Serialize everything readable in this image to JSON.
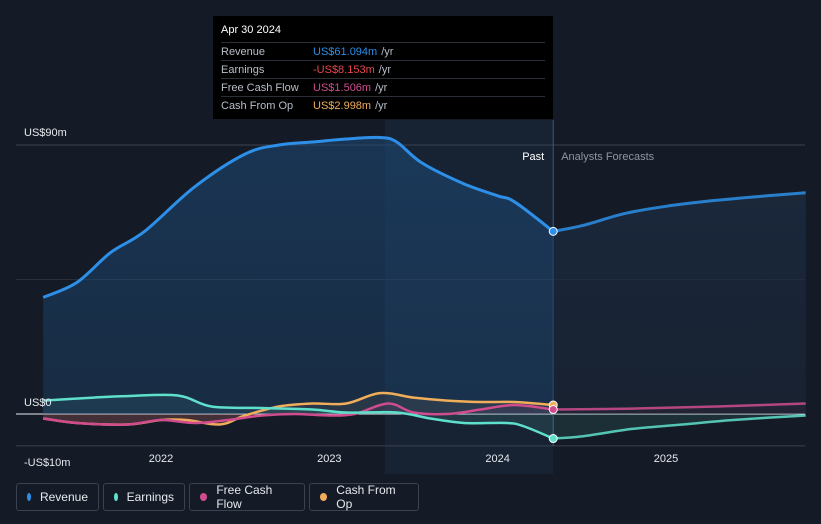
{
  "chart_data": {
    "type": "line",
    "y_labels": [
      "US$90m",
      "US$0",
      "-US$10m"
    ],
    "ylim": [
      -10,
      90
    ],
    "x_ticks": [
      "2022",
      "2023",
      "2024",
      "2025"
    ],
    "past_label": "Past",
    "forecast_label": "Analysts Forecasts",
    "past_end": 2024.33,
    "series": [
      {
        "name": "Revenue",
        "color": "#2d8fe8",
        "points": [
          [
            2021.3,
            39
          ],
          [
            2021.5,
            44
          ],
          [
            2021.7,
            54
          ],
          [
            2021.9,
            61
          ],
          [
            2022.2,
            76
          ],
          [
            2022.5,
            87
          ],
          [
            2022.7,
            90
          ],
          [
            2022.9,
            91
          ],
          [
            2023.1,
            92
          ],
          [
            2023.3,
            92.5
          ],
          [
            2023.4,
            91
          ],
          [
            2023.55,
            84
          ],
          [
            2023.8,
            77
          ],
          [
            2024.0,
            73
          ],
          [
            2024.1,
            71
          ],
          [
            2024.33,
            61.1
          ]
        ],
        "forecast": [
          [
            2024.33,
            61.1
          ],
          [
            2024.5,
            63
          ],
          [
            2024.75,
            67
          ],
          [
            2025.0,
            69.5
          ],
          [
            2025.3,
            71.5
          ],
          [
            2025.6,
            73
          ],
          [
            2025.83,
            74
          ]
        ],
        "fill": true
      },
      {
        "name": "Earnings",
        "color": "#5fe0cd",
        "points": [
          [
            2021.3,
            4.5
          ],
          [
            2021.6,
            5.5
          ],
          [
            2021.8,
            6
          ],
          [
            2022.1,
            6.2
          ],
          [
            2022.3,
            2.5
          ],
          [
            2022.6,
            2
          ],
          [
            2022.9,
            1.5
          ],
          [
            2023.1,
            0.5
          ],
          [
            2023.4,
            0.5
          ],
          [
            2023.6,
            -1.5
          ],
          [
            2023.8,
            -3
          ],
          [
            2024.05,
            -3
          ],
          [
            2024.15,
            -4
          ],
          [
            2024.33,
            -8.2
          ]
        ],
        "forecast": [
          [
            2024.33,
            -8.2
          ],
          [
            2024.5,
            -7.5
          ],
          [
            2024.8,
            -5
          ],
          [
            2025.1,
            -3.5
          ],
          [
            2025.4,
            -2
          ],
          [
            2025.83,
            -0.5
          ]
        ]
      },
      {
        "name": "Free Cash Flow",
        "color": "#d04c8e",
        "points": [
          [
            2021.3,
            -1.5
          ],
          [
            2021.5,
            -3
          ],
          [
            2021.8,
            -3.5
          ],
          [
            2022.0,
            -2
          ],
          [
            2022.2,
            -3
          ],
          [
            2022.4,
            -2
          ],
          [
            2022.6,
            -0.5
          ],
          [
            2022.8,
            0
          ],
          [
            2023.0,
            -0.5
          ],
          [
            2023.15,
            0
          ],
          [
            2023.35,
            3.5
          ],
          [
            2023.5,
            0.5
          ],
          [
            2023.7,
            0
          ],
          [
            2023.9,
            1.5
          ],
          [
            2024.1,
            3
          ],
          [
            2024.33,
            1.5
          ]
        ],
        "forecast": [
          [
            2024.33,
            1.5
          ],
          [
            2024.8,
            1.8
          ],
          [
            2025.3,
            2.5
          ],
          [
            2025.83,
            3.5
          ]
        ]
      },
      {
        "name": "Cash From Op",
        "color": "#f0ad5a",
        "points": [
          [
            2021.3,
            -1.5
          ],
          [
            2021.5,
            -3
          ],
          [
            2021.8,
            -3.5
          ],
          [
            2022.0,
            -2
          ],
          [
            2022.15,
            -2
          ],
          [
            2022.35,
            -3.5
          ],
          [
            2022.5,
            -0.5
          ],
          [
            2022.7,
            2.5
          ],
          [
            2022.9,
            3.5
          ],
          [
            2023.1,
            3.5
          ],
          [
            2023.3,
            7
          ],
          [
            2023.5,
            5.5
          ],
          [
            2023.7,
            4.5
          ],
          [
            2023.9,
            4
          ],
          [
            2024.1,
            4
          ],
          [
            2024.33,
            3.0
          ]
        ],
        "forecast": []
      }
    ]
  },
  "tooltip": {
    "date": "Apr 30 2024",
    "rows": [
      {
        "name": "Revenue",
        "value": "US$61.094m",
        "unit": "/yr",
        "color": "#2d8fe8"
      },
      {
        "name": "Earnings",
        "value": "-US$8.153m",
        "unit": "/yr",
        "color": "#e5484d"
      },
      {
        "name": "Free Cash Flow",
        "value": "US$1.506m",
        "unit": "/yr",
        "color": "#d04c8e"
      },
      {
        "name": "Cash From Op",
        "value": "US$2.998m",
        "unit": "/yr",
        "color": "#f0ad5a"
      }
    ]
  },
  "legend": [
    {
      "label": "Revenue",
      "color": "#2d8fe8"
    },
    {
      "label": "Earnings",
      "color": "#5fe0cd"
    },
    {
      "label": "Free Cash Flow",
      "color": "#d04c8e"
    },
    {
      "label": "Cash From Op",
      "color": "#f0ad5a"
    }
  ]
}
